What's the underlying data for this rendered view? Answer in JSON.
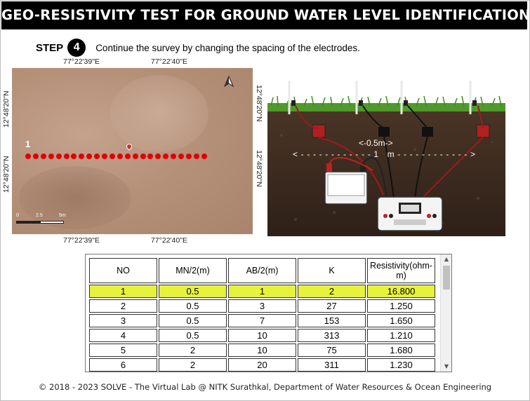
{
  "title": "GEO-RESISTIVITY TEST FOR GROUND WATER LEVEL IDENTIFICATION",
  "step": {
    "word": "STEP",
    "number": "4",
    "instruction": "Continue the survey by changing the spacing of the electrodes."
  },
  "map": {
    "top_left_lon": "77°22'39\"E",
    "top_right_lon": "77°22'40\"E",
    "bottom_left_lon": "77°22'39\"E",
    "bottom_right_lon": "77°22'40\"E",
    "left_top_lat": "12°48'20\"N",
    "left_bottom_lat": "12°48'20\"N",
    "right_top_lat": "12°48'20\"N",
    "right_bottom_lat": "12°48'20\"N",
    "point_label": "1",
    "scale_labels": [
      "0",
      "2.5",
      "5m"
    ],
    "dot_count": 24,
    "icons": [
      "north-arrow-icon",
      "location-pin-icon"
    ]
  },
  "scene": {
    "inner_spacing_label": "<-0.5m->",
    "outer_spacing_label": "<------------1 m------------>"
  },
  "table": {
    "headers": [
      "NO",
      "MN/2(m)",
      "AB/2(m)",
      "K",
      "Resistivity(ohm-m)"
    ],
    "rows": [
      [
        "1",
        "0.5",
        "1",
        "2",
        "16.800"
      ],
      [
        "2",
        "0.5",
        "3",
        "27",
        "1.250"
      ],
      [
        "3",
        "0.5",
        "7",
        "153",
        "1.650"
      ],
      [
        "4",
        "0.5",
        "10",
        "313",
        "1.210"
      ],
      [
        "5",
        "2",
        "10",
        "75",
        "1.680"
      ],
      [
        "6",
        "2",
        "20",
        "311",
        "1.230"
      ]
    ],
    "selected_row": 0,
    "highlight_color": "#e6f23c",
    "scrollbar_icons": {
      "up": "▲",
      "down": "▼"
    }
  },
  "footer": "© 2018 - 2023 SOLVE - The Virtual Lab @ NITK Surathkal, Department of Water Resources & Ocean Engineering"
}
